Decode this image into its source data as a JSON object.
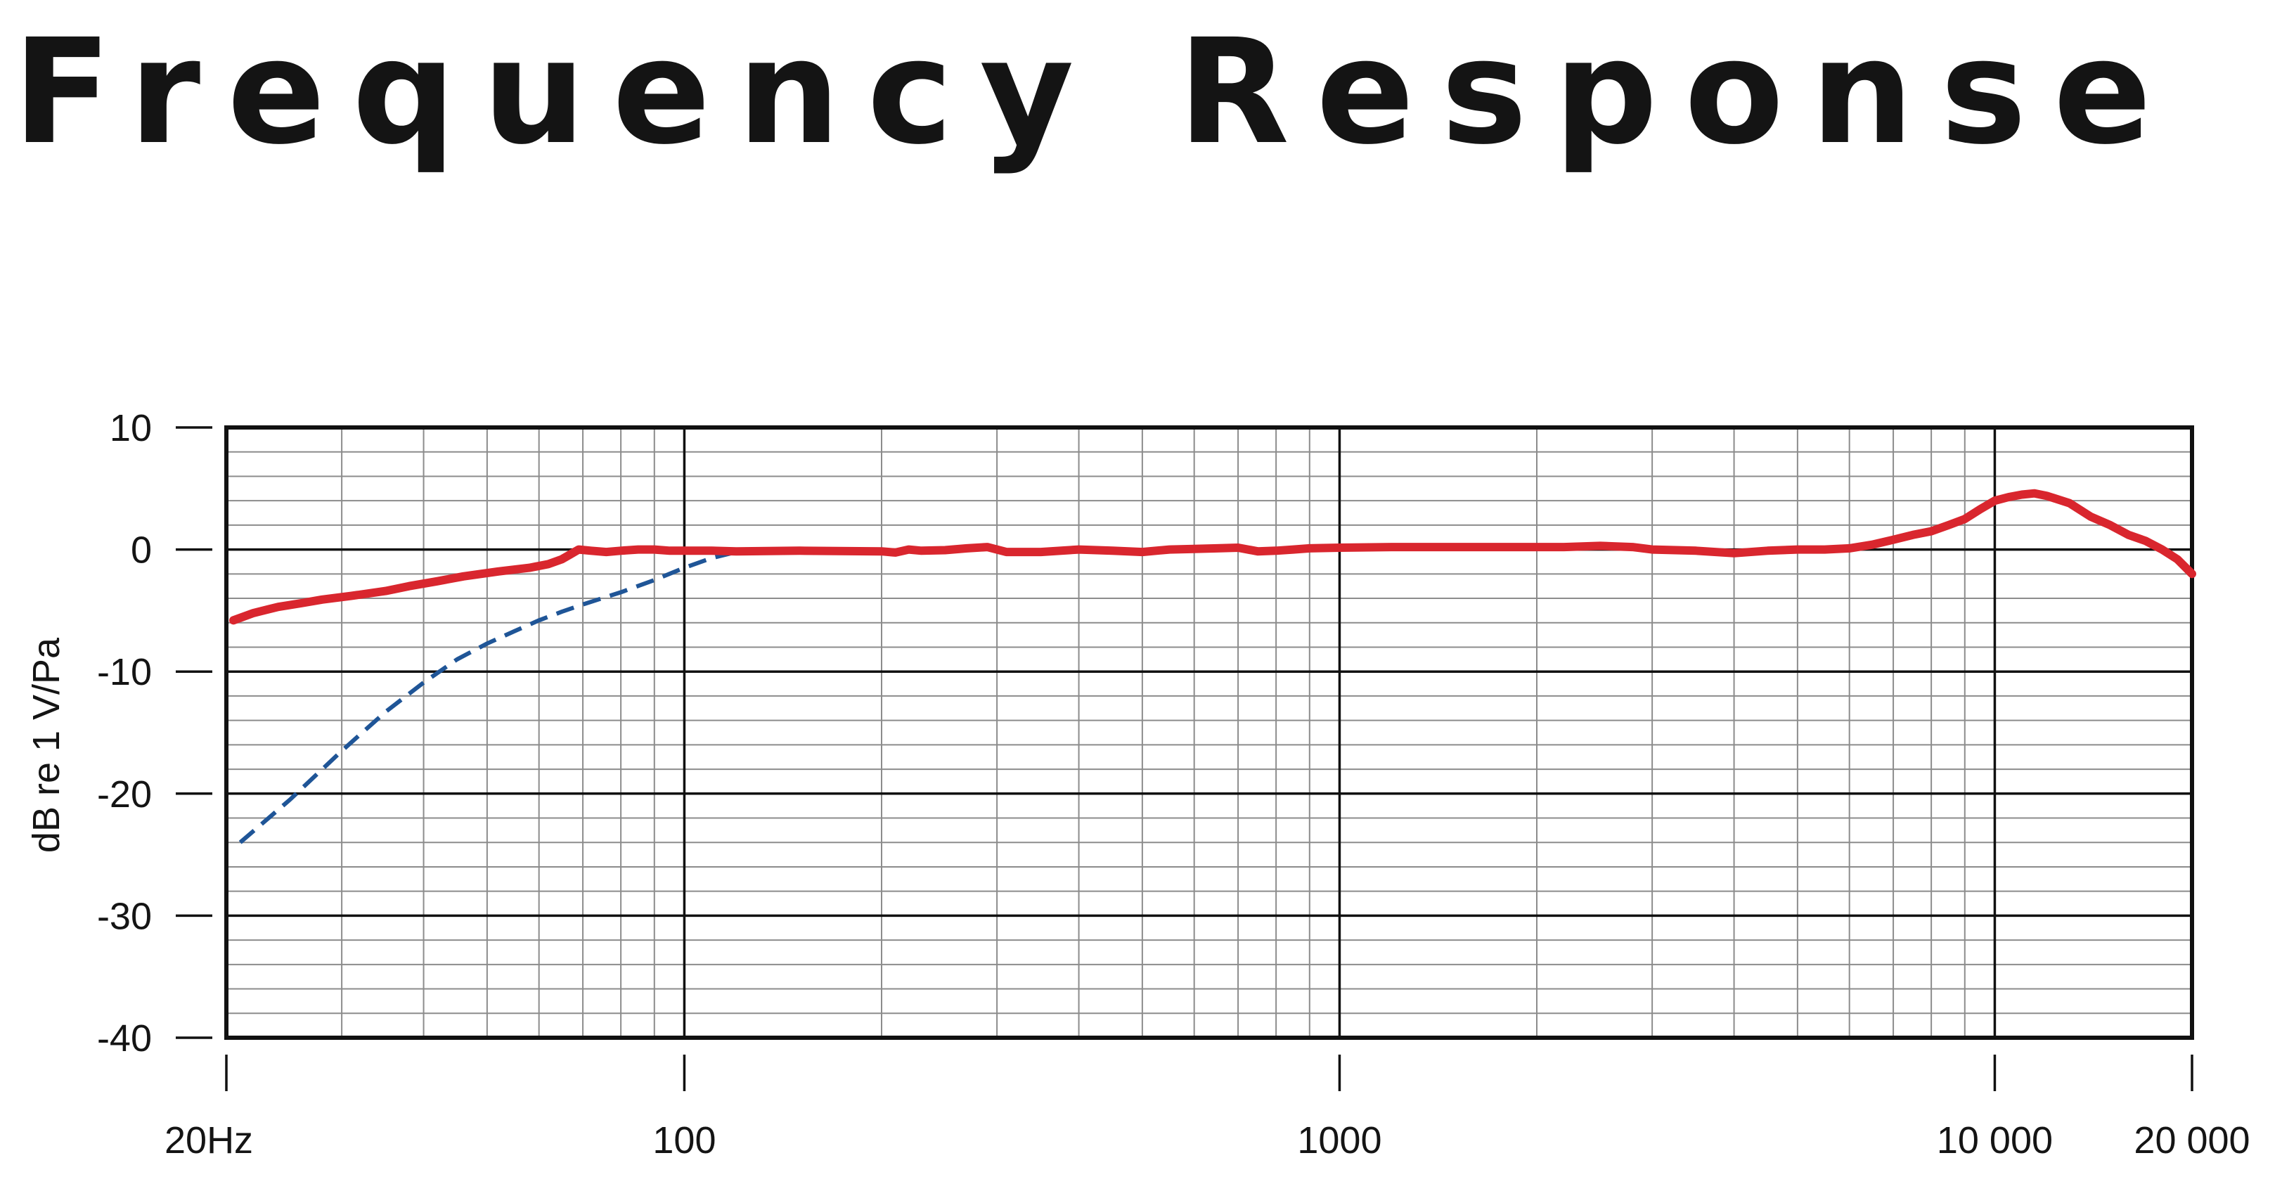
{
  "chart_data": {
    "type": "line",
    "title": "Frequency Response",
    "ylabel": "dB re 1 V/Pa",
    "xlabel": "",
    "x_scale": "log",
    "xlim": [
      20,
      20000
    ],
    "ylim": [
      -40,
      10
    ],
    "grid": true,
    "x_ticks": [
      {
        "value": 20,
        "label": "20Hz"
      },
      {
        "value": 100,
        "label": "100"
      },
      {
        "value": 1000,
        "label": "1000"
      },
      {
        "value": 10000,
        "label": "10 000"
      },
      {
        "value": 20000,
        "label": "20 000"
      }
    ],
    "y_ticks": [
      {
        "value": 10,
        "label": "10"
      },
      {
        "value": 0,
        "label": "0"
      },
      {
        "value": -10,
        "label": "-10"
      },
      {
        "value": -20,
        "label": "-20"
      },
      {
        "value": -30,
        "label": "-30"
      },
      {
        "value": -40,
        "label": "-40"
      }
    ],
    "series": [
      {
        "color": "#d9262e",
        "style": "solid",
        "points": [
          [
            20.5,
            -5.8
          ],
          [
            22,
            -5.2
          ],
          [
            24,
            -4.7
          ],
          [
            26,
            -4.4
          ],
          [
            28,
            -4.1
          ],
          [
            31,
            -3.8
          ],
          [
            35,
            -3.4
          ],
          [
            38,
            -3.0
          ],
          [
            42,
            -2.6
          ],
          [
            46,
            -2.2
          ],
          [
            52,
            -1.8
          ],
          [
            58,
            -1.5
          ],
          [
            62,
            -1.2
          ],
          [
            65,
            -0.8
          ],
          [
            67,
            -0.4
          ],
          [
            69,
            0.0
          ],
          [
            72,
            -0.1
          ],
          [
            76,
            -0.2
          ],
          [
            80,
            -0.1
          ],
          [
            85,
            0.0
          ],
          [
            90,
            0.0
          ],
          [
            95,
            -0.1
          ],
          [
            100,
            -0.1
          ],
          [
            110,
            -0.1
          ],
          [
            120,
            -0.15
          ],
          [
            150,
            -0.1
          ],
          [
            200,
            -0.15
          ],
          [
            210,
            -0.25
          ],
          [
            220,
            0.0
          ],
          [
            230,
            -0.1
          ],
          [
            250,
            -0.05
          ],
          [
            270,
            0.1
          ],
          [
            290,
            0.2
          ],
          [
            310,
            -0.2
          ],
          [
            350,
            -0.2
          ],
          [
            400,
            0.0
          ],
          [
            450,
            -0.1
          ],
          [
            500,
            -0.2
          ],
          [
            550,
            0.0
          ],
          [
            600,
            0.05
          ],
          [
            650,
            0.1
          ],
          [
            700,
            0.15
          ],
          [
            750,
            -0.15
          ],
          [
            800,
            -0.1
          ],
          [
            850,
            0.0
          ],
          [
            900,
            0.1
          ],
          [
            1000,
            0.15
          ],
          [
            1200,
            0.2
          ],
          [
            1500,
            0.2
          ],
          [
            1800,
            0.2
          ],
          [
            2000,
            0.2
          ],
          [
            2200,
            0.2
          ],
          [
            2500,
            0.3
          ],
          [
            2800,
            0.2
          ],
          [
            3000,
            0.0
          ],
          [
            3500,
            -0.1
          ],
          [
            4000,
            -0.3
          ],
          [
            4500,
            -0.1
          ],
          [
            5000,
            0.0
          ],
          [
            5500,
            0.0
          ],
          [
            6000,
            0.1
          ],
          [
            6500,
            0.4
          ],
          [
            7000,
            0.8
          ],
          [
            7500,
            1.2
          ],
          [
            8000,
            1.5
          ],
          [
            8500,
            2.0
          ],
          [
            9000,
            2.5
          ],
          [
            9500,
            3.3
          ],
          [
            10000,
            4.0
          ],
          [
            10500,
            4.3
          ],
          [
            11000,
            4.5
          ],
          [
            11500,
            4.6
          ],
          [
            12000,
            4.4
          ],
          [
            13000,
            3.8
          ],
          [
            14000,
            2.7
          ],
          [
            15000,
            2.0
          ],
          [
            16000,
            1.2
          ],
          [
            17000,
            0.7
          ],
          [
            18000,
            0.0
          ],
          [
            19000,
            -0.8
          ],
          [
            20000,
            -2.0
          ]
        ]
      },
      {
        "color": "#1f5597",
        "style": "dashed",
        "points": [
          [
            21,
            -24
          ],
          [
            25,
            -20.5
          ],
          [
            30,
            -16.5
          ],
          [
            35,
            -13.3
          ],
          [
            40,
            -10.9
          ],
          [
            45,
            -9.0
          ],
          [
            50,
            -7.7
          ],
          [
            55,
            -6.7
          ],
          [
            60,
            -5.8
          ],
          [
            65,
            -5.1
          ],
          [
            70,
            -4.5
          ],
          [
            80,
            -3.5
          ],
          [
            90,
            -2.5
          ],
          [
            100,
            -1.5
          ],
          [
            110,
            -0.7
          ],
          [
            120,
            -0.2
          ],
          [
            130,
            0.0
          ]
        ]
      }
    ]
  }
}
